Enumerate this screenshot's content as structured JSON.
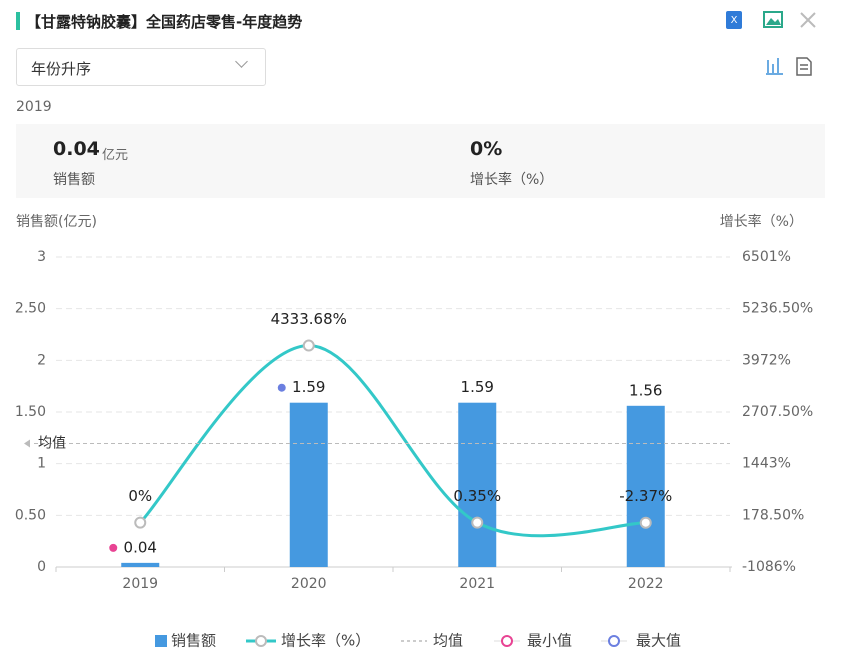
{
  "header": {
    "title": "【甘露特钠胶囊】全国药店零售-年度趋势",
    "sort": "年份升序",
    "year": "2019"
  },
  "stats": [
    {
      "value": "0.04",
      "unit": "亿元",
      "label": "销售额"
    },
    {
      "value": "0%",
      "label": "增长率（%）"
    }
  ],
  "chart_data": {
    "type": "bar",
    "y_label": "销售额(亿元)",
    "y2_label": "增长率（%）",
    "categories": [
      "2019",
      "2020",
      "2021",
      "2022"
    ],
    "series": [
      {
        "name": "销售额",
        "color": "#4599e0",
        "values": [
          0.04,
          1.59,
          1.59,
          1.56
        ]
      },
      {
        "name": "增长率（%）",
        "type": "line",
        "axis": "y2",
        "color": "#33c8c8",
        "values": [
          0,
          4333.68,
          0.35,
          -2.37
        ],
        "value_labels": [
          "0%",
          "4333.68%",
          "0.35%",
          "-2.37%"
        ]
      }
    ],
    "ylim": [
      0,
      3
    ],
    "yticks": [
      0,
      {
        "value": 0.5,
        "label": "0.50"
      },
      1,
      {
        "value": 1.5,
        "label": "1.50"
      },
      2,
      {
        "value": 2.5,
        "label": "2.50"
      },
      3
    ],
    "y2lim": [
      -1086,
      6501
    ],
    "y2ticks": [
      {
        "value": -1086,
        "label": "-1086%"
      },
      {
        "value": 178.5,
        "label": "178.50%"
      },
      {
        "value": 1443,
        "label": "1443%"
      },
      {
        "value": 2707.5,
        "label": "2707.50%"
      },
      {
        "value": 3972,
        "label": "3972%"
      },
      {
        "value": 5236.5,
        "label": "5236.50%"
      },
      {
        "value": 6501,
        "label": "6501%"
      }
    ],
    "mean": {
      "name": "均值",
      "value": 1.195
    },
    "min": {
      "name": "最小值",
      "color": "#e84393"
    },
    "max": {
      "name": "最大值",
      "color": "#6b7fe0"
    },
    "grid": true
  }
}
